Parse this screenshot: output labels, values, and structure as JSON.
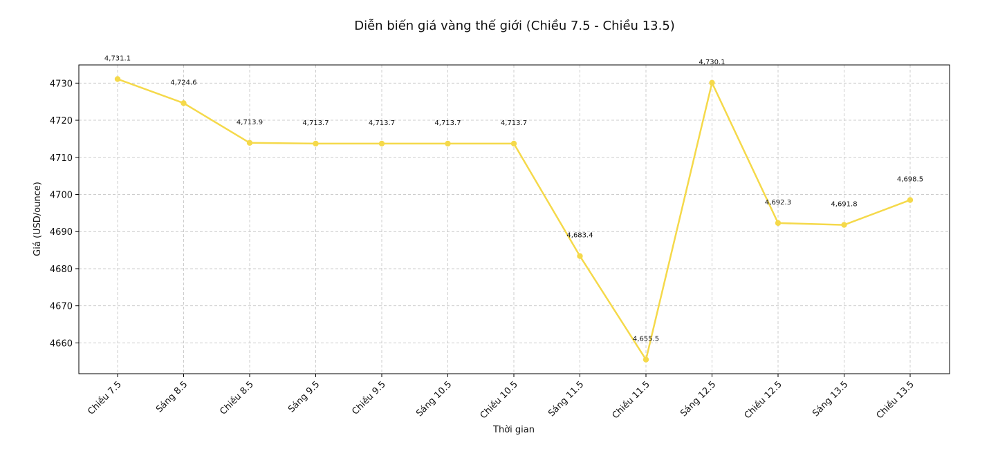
{
  "chart_data": {
    "type": "line",
    "title": "Diễn biến giá vàng thế giới (Chiều 7.5 - Chiều 13.5)",
    "xlabel": "Thời gian",
    "ylabel": "Giá (USD/ounce)",
    "categories": [
      "Chiều 7.5",
      "Sáng 8.5",
      "Chiều 8.5",
      "Sáng 9.5",
      "Chiều 9.5",
      "Sáng 10.5",
      "Chiều 10.5",
      "Sáng 11.5",
      "Chiều 11.5",
      "Sáng 12.5",
      "Chiều 12.5",
      "Sáng 13.5",
      "Chiều 13.5"
    ],
    "series": [
      {
        "values": [
          4731.1,
          4724.6,
          4713.9,
          4713.7,
          4713.7,
          4713.7,
          4713.7,
          4683.4,
          4655.5,
          4730.1,
          4692.3,
          4691.8,
          4698.5
        ],
        "color": "#f5d94a"
      }
    ],
    "data_labels": [
      "4,731.1",
      "4,724.6",
      "4,713.9",
      "4,713.7",
      "4,713.7",
      "4,713.7",
      "4,713.7",
      "4,683.4",
      "4,655.5",
      "4,730.1",
      "4,692.3",
      "4,691.8",
      "4,698.5"
    ],
    "yticks": [
      4660,
      4670,
      4680,
      4690,
      4700,
      4710,
      4720,
      4730
    ],
    "ylim": [
      4651.7,
      4734.9
    ],
    "grid": true,
    "marker": "circle"
  }
}
